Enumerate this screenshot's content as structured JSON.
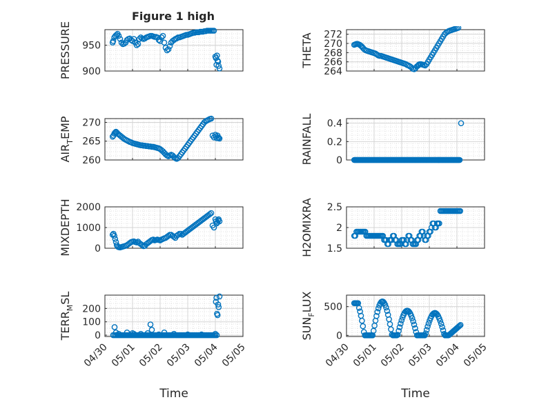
{
  "figure": {
    "title": "Figure 1 high"
  },
  "chart_data": [
    {
      "type": "scatter",
      "title": "Figure 1 high",
      "ylabel": "PRESSURE",
      "xlabel": "",
      "x_range": [
        "04/30",
        "05/05"
      ],
      "ylim": [
        900,
        980
      ],
      "yticks": [
        900,
        950
      ],
      "xtick_labels": [],
      "grid": true,
      "color": "#0072BD",
      "series": [
        {
          "x": [
            0.28,
            0.3,
            0.34,
            0.38,
            0.42,
            0.46,
            0.5,
            0.55,
            0.6,
            0.65,
            0.7,
            0.75,
            0.8,
            0.85,
            0.9,
            0.95,
            1.0,
            1.05,
            1.1,
            1.15,
            1.2,
            1.25,
            1.3,
            1.35,
            1.4,
            1.45,
            1.5,
            1.55,
            1.6,
            1.65,
            1.7,
            1.75,
            1.8,
            1.85,
            1.9,
            1.95,
            2.0,
            2.05,
            2.1,
            2.15,
            2.2,
            2.25,
            2.3,
            2.35,
            2.4,
            2.45,
            2.5,
            2.55,
            2.6,
            2.65,
            2.7,
            2.75,
            2.8,
            2.85,
            2.9,
            2.95,
            3.0,
            3.05,
            3.1,
            3.15,
            3.2,
            3.25,
            3.3,
            3.35,
            3.4,
            3.45,
            3.5,
            3.55,
            3.6,
            3.65,
            3.7,
            3.75,
            3.8,
            3.85,
            3.9,
            3.95,
            4.0,
            4.02,
            4.04,
            4.06,
            4.08,
            4.1,
            4.12,
            4.15
          ],
          "y": [
            955,
            958,
            965,
            968,
            970,
            972,
            968,
            962,
            955,
            952,
            953,
            955,
            960,
            962,
            963,
            960,
            958,
            962,
            955,
            950,
            952,
            962,
            965,
            963,
            962,
            963,
            965,
            966,
            967,
            968,
            968,
            967,
            966,
            966,
            965,
            960,
            958,
            965,
            968,
            955,
            945,
            940,
            942,
            948,
            955,
            958,
            960,
            962,
            963,
            965,
            965,
            966,
            967,
            968,
            969,
            970,
            970,
            971,
            972,
            973,
            974,
            974,
            975,
            975,
            975,
            976,
            976,
            976,
            977,
            977,
            978,
            978,
            978,
            978,
            978,
            978,
            928,
            925,
            912,
            930,
            920,
            918,
            910,
            905
          ]
        }
      ]
    },
    {
      "type": "scatter",
      "title": "",
      "ylabel": "THETA",
      "xlabel": "",
      "x_range": [
        "04/30",
        "05/05"
      ],
      "ylim": [
        264,
        273
      ],
      "yticks": [
        264,
        266,
        268,
        270,
        272
      ],
      "xtick_labels": [],
      "grid": true,
      "color": "#0072BD",
      "series": [
        {
          "x": [
            0.28,
            0.32,
            0.36,
            0.4,
            0.44,
            0.48,
            0.52,
            0.56,
            0.6,
            0.65,
            0.7,
            0.75,
            0.8,
            0.85,
            0.9,
            0.95,
            1.0,
            1.05,
            1.1,
            1.15,
            1.2,
            1.25,
            1.3,
            1.35,
            1.4,
            1.45,
            1.5,
            1.55,
            1.6,
            1.65,
            1.7,
            1.75,
            1.8,
            1.85,
            1.9,
            1.95,
            2.0,
            2.05,
            2.1,
            2.15,
            2.2,
            2.25,
            2.3,
            2.35,
            2.4,
            2.45,
            2.5,
            2.55,
            2.6,
            2.62,
            2.66,
            2.7,
            2.75,
            2.8,
            2.85,
            2.9,
            2.95,
            3.0,
            3.05,
            3.1,
            3.15,
            3.2,
            3.25,
            3.3,
            3.35,
            3.4,
            3.45,
            3.5,
            3.55,
            3.6,
            3.65,
            3.7,
            3.75,
            3.8,
            3.85,
            3.9,
            3.95,
            4.0,
            4.05,
            4.1,
            4.15
          ],
          "y": [
            269.7,
            269.8,
            269.9,
            269.9,
            269.8,
            269.7,
            269.5,
            269.3,
            269.0,
            268.7,
            268.5,
            268.4,
            268.3,
            268.2,
            268.1,
            268.0,
            267.9,
            267.8,
            267.6,
            267.4,
            267.3,
            267.3,
            267.2,
            267.1,
            267.0,
            266.9,
            266.8,
            266.7,
            266.6,
            266.5,
            266.4,
            266.3,
            266.2,
            266.1,
            266.0,
            265.9,
            265.8,
            265.7,
            265.6,
            265.5,
            265.3,
            265.2,
            265.0,
            264.8,
            264.5,
            264.4,
            264.6,
            265.0,
            265.2,
            265.4,
            265.5,
            265.5,
            265.4,
            265.3,
            265.2,
            265.5,
            266.0,
            266.5,
            267.0,
            267.5,
            268.0,
            268.5,
            269.0,
            269.5,
            270.0,
            270.5,
            271.0,
            271.5,
            272.0,
            272.3,
            272.5,
            272.7,
            272.8,
            272.9,
            273.0,
            273.1,
            273.2,
            273.3,
            273.4,
            273.5,
            273.6
          ]
        }
      ]
    },
    {
      "type": "scatter",
      "title": "",
      "ylabel": "AIR_TEMP",
      "ylabel_main": "AIR",
      "ylabel_sub": "T",
      "ylabel_tail": "EMP",
      "xlabel": "",
      "x_range": [
        "04/30",
        "05/05"
      ],
      "ylim": [
        260,
        271
      ],
      "yticks": [
        260,
        265,
        270
      ],
      "xtick_labels": [],
      "grid": true,
      "color": "#0072BD",
      "series": [
        {
          "x": [
            0.28,
            0.31,
            0.34,
            0.37,
            0.4,
            0.43,
            0.46,
            0.5,
            0.55,
            0.6,
            0.65,
            0.7,
            0.75,
            0.8,
            0.85,
            0.9,
            0.95,
            1.0,
            1.05,
            1.1,
            1.15,
            1.2,
            1.25,
            1.3,
            1.35,
            1.4,
            1.45,
            1.5,
            1.55,
            1.6,
            1.65,
            1.7,
            1.75,
            1.8,
            1.85,
            1.9,
            1.95,
            2.0,
            2.05,
            2.1,
            2.15,
            2.2,
            2.25,
            2.3,
            2.35,
            2.4,
            2.45,
            2.5,
            2.55,
            2.6,
            2.65,
            2.7,
            2.75,
            2.8,
            2.85,
            2.9,
            2.95,
            3.0,
            3.05,
            3.1,
            3.15,
            3.2,
            3.25,
            3.3,
            3.35,
            3.4,
            3.45,
            3.5,
            3.55,
            3.6,
            3.65,
            3.7,
            3.75,
            3.8,
            3.85,
            3.9,
            3.95,
            4.0,
            4.02,
            4.05,
            4.08,
            4.1,
            4.12,
            4.15
          ],
          "y": [
            266.2,
            266.5,
            267.0,
            267.3,
            267.5,
            267.3,
            267.0,
            266.8,
            266.5,
            266.2,
            265.9,
            265.6,
            265.4,
            265.2,
            265.0,
            264.8,
            264.7,
            264.5,
            264.4,
            264.3,
            264.2,
            264.1,
            264.0,
            263.9,
            263.9,
            263.8,
            263.8,
            263.7,
            263.7,
            263.6,
            263.6,
            263.5,
            263.5,
            263.4,
            263.3,
            263.2,
            263.1,
            262.9,
            262.6,
            262.3,
            261.9,
            261.5,
            261.2,
            261.0,
            261.2,
            261.4,
            261.2,
            260.8,
            260.5,
            260.3,
            260.5,
            261.0,
            261.5,
            262.0,
            262.5,
            263.0,
            263.5,
            264.0,
            264.5,
            265.0,
            265.5,
            266.0,
            266.5,
            267.0,
            267.5,
            268.0,
            268.5,
            269.0,
            269.5,
            270.0,
            270.3,
            270.5,
            270.7,
            270.9,
            271.0,
            266.5,
            266.0,
            266.7,
            266.2,
            265.8,
            266.5,
            266.0,
            265.9,
            265.7
          ]
        }
      ]
    },
    {
      "type": "scatter",
      "title": "",
      "ylabel": "RAINFALL",
      "xlabel": "",
      "x_range": [
        "04/30",
        "05/05"
      ],
      "ylim": [
        0,
        0.45
      ],
      "yticks": [
        0,
        0.2,
        0.4
      ],
      "xtick_labels": [],
      "grid": true,
      "color": "#0072BD",
      "series": [
        {
          "x_start": 0.28,
          "x_end": 4.1,
          "x_step": 0.02,
          "y_const": 0,
          "extra_points": [
            [
              4.15,
              0.4
            ]
          ]
        }
      ]
    },
    {
      "type": "scatter",
      "title": "",
      "ylabel": "MIXDEPTH",
      "xlabel": "",
      "x_range": [
        "04/30",
        "05/05"
      ],
      "ylim": [
        0,
        2000
      ],
      "yticks": [
        0,
        1000,
        2000
      ],
      "xtick_labels": [],
      "grid": true,
      "color": "#0072BD",
      "series": [
        {
          "x": [
            0.28,
            0.31,
            0.34,
            0.37,
            0.4,
            0.43,
            0.46,
            0.5,
            0.55,
            0.6,
            0.65,
            0.7,
            0.75,
            0.8,
            0.85,
            0.9,
            0.95,
            1.0,
            1.05,
            1.1,
            1.15,
            1.2,
            1.25,
            1.3,
            1.35,
            1.4,
            1.45,
            1.5,
            1.55,
            1.6,
            1.65,
            1.7,
            1.75,
            1.8,
            1.85,
            1.9,
            1.95,
            2.0,
            2.05,
            2.1,
            2.15,
            2.2,
            2.25,
            2.3,
            2.35,
            2.4,
            2.45,
            2.5,
            2.55,
            2.6,
            2.65,
            2.7,
            2.75,
            2.8,
            2.85,
            2.9,
            2.95,
            3.0,
            3.05,
            3.1,
            3.15,
            3.2,
            3.25,
            3.3,
            3.35,
            3.4,
            3.45,
            3.5,
            3.55,
            3.6,
            3.65,
            3.7,
            3.75,
            3.8,
            3.85,
            3.9,
            3.95,
            4.0,
            4.02,
            4.05,
            4.08,
            4.1,
            4.12,
            4.15
          ],
          "y": [
            650,
            700,
            600,
            450,
            300,
            150,
            80,
            50,
            40,
            60,
            80,
            100,
            120,
            150,
            200,
            250,
            300,
            320,
            330,
            300,
            280,
            320,
            250,
            200,
            150,
            100,
            120,
            200,
            250,
            300,
            350,
            400,
            420,
            380,
            400,
            420,
            400,
            380,
            420,
            450,
            480,
            500,
            550,
            600,
            650,
            650,
            600,
            550,
            500,
            600,
            650,
            700,
            700,
            650,
            700,
            750,
            800,
            850,
            900,
            950,
            1000,
            1050,
            1100,
            1150,
            1200,
            1250,
            1300,
            1350,
            1400,
            1450,
            1500,
            1550,
            1600,
            1650,
            1700,
            1100,
            1000,
            1400,
            1300,
            1200,
            1250,
            1350,
            1400,
            1300
          ]
        }
      ]
    },
    {
      "type": "scatter",
      "title": "",
      "ylabel": "H2OMIXRA",
      "xlabel": "",
      "x_range": [
        "04/30",
        "05/05"
      ],
      "ylim": [
        1.5,
        2.5
      ],
      "yticks": [
        1.5,
        2,
        2.5
      ],
      "xtick_labels": [],
      "grid": true,
      "color": "#0072BD",
      "series": [
        {
          "x_start": 0.28,
          "x_end": 4.15,
          "x_step": 0.04,
          "y": [
            1.8,
            1.8,
            1.9,
            1.9,
            1.9,
            1.9,
            1.9,
            1.9,
            1.9,
            1.9,
            1.9,
            1.8,
            1.8,
            1.8,
            1.8,
            1.8,
            1.8,
            1.8,
            1.8,
            1.8,
            1.8,
            1.8,
            1.8,
            1.8,
            1.8,
            1.8,
            1.8,
            1.7,
            1.7,
            1.7,
            1.6,
            1.6,
            1.7,
            1.7,
            1.7,
            1.8,
            1.8,
            1.7,
            1.7,
            1.6,
            1.6,
            1.6,
            1.6,
            1.7,
            1.7,
            1.7,
            1.6,
            1.6,
            1.7,
            1.8,
            1.8,
            1.7,
            1.7,
            1.6,
            1.6,
            1.6,
            1.6,
            1.7,
            1.7,
            1.8,
            1.8,
            1.9,
            1.9,
            1.8,
            1.7,
            1.7,
            1.8,
            1.8,
            1.9,
            1.9,
            2.0,
            2.1,
            2.1,
            2.0,
            2.0,
            2.1,
            2.1,
            2.1,
            2.4,
            2.4,
            2.4,
            2.4,
            2.4,
            2.4,
            2.4,
            2.4,
            2.4,
            2.4,
            2.4,
            2.4,
            2.4,
            2.4,
            2.4,
            2.4,
            2.4,
            2.4,
            2.4
          ]
        }
      ]
    },
    {
      "type": "scatter",
      "title": "",
      "ylabel": "TERR_MSL",
      "ylabel_main": "TERR",
      "ylabel_sub": "M",
      "ylabel_tail": "SL",
      "xlabel": "Time",
      "x_range": [
        "04/30",
        "05/05"
      ],
      "ylim": [
        -10,
        300
      ],
      "yticks": [
        0,
        100,
        200
      ],
      "xtick_labels": [
        "04/30",
        "05/01",
        "05/02",
        "05/03",
        "05/04",
        "05/05"
      ],
      "grid": true,
      "color": "#0072BD",
      "series": [
        {
          "x_start": 0.3,
          "x_end": 4.05,
          "x_step": 0.05,
          "y_const": 0,
          "extra_points": [
            [
              0.35,
              60
            ],
            [
              0.4,
              20
            ],
            [
              0.5,
              10
            ],
            [
              0.8,
              20
            ],
            [
              1.0,
              15
            ],
            [
              1.05,
              10
            ],
            [
              1.3,
              10
            ],
            [
              1.55,
              15
            ],
            [
              1.65,
              80
            ],
            [
              1.7,
              40
            ],
            [
              1.95,
              5
            ],
            [
              2.15,
              20
            ],
            [
              2.5,
              10
            ],
            [
              3.0,
              5
            ],
            [
              3.5,
              5
            ],
            [
              4.0,
              10
            ],
            [
              4.02,
              250
            ],
            [
              4.04,
              280
            ],
            [
              4.06,
              160
            ],
            [
              4.08,
              150
            ],
            [
              4.1,
              230
            ],
            [
              4.12,
              210
            ],
            [
              4.15,
              290
            ]
          ]
        }
      ]
    },
    {
      "type": "scatter",
      "title": "",
      "ylabel": "SUN_FLUX",
      "ylabel_main": "SUN",
      "ylabel_sub": "F",
      "ylabel_tail": "LUX",
      "xlabel": "Time",
      "x_range": [
        "04/30",
        "05/05"
      ],
      "ylim": [
        -20,
        700
      ],
      "yticks": [
        0,
        500
      ],
      "xtick_labels": [
        "04/30",
        "05/01",
        "05/02",
        "05/03",
        "05/04",
        "05/05"
      ],
      "grid": true,
      "color": "#0072BD",
      "series": [
        {
          "x_start": 0.28,
          "x_end": 4.15,
          "x_step": 0.035,
          "waveform": "diurnal"
        }
      ]
    }
  ]
}
